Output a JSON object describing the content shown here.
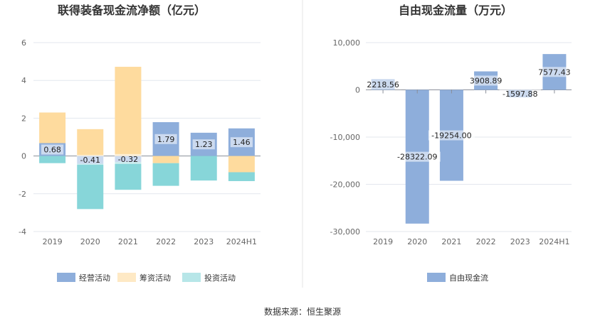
{
  "chart_data": [
    {
      "type": "bar",
      "stacked": true,
      "title": "联得装备现金流净额（亿元）",
      "categories": [
        "2019",
        "2020",
        "2021",
        "2022",
        "2023",
        "2024H1"
      ],
      "ylim": [
        -4,
        6
      ],
      "yticks": [
        "-4",
        "-2",
        "0",
        "2",
        "4",
        "6"
      ],
      "grid": true,
      "legend_position": "bottom",
      "series": [
        {
          "name": "经营活动",
          "color": "#8eaedb",
          "values": [
            0.68,
            -0.41,
            -0.32,
            1.79,
            1.23,
            1.46
          ],
          "labels": [
            "0.68",
            "-0.41",
            "-0.32",
            "1.79",
            "1.23",
            "1.46"
          ]
        },
        {
          "name": "筹资活动",
          "color": "#fedb9e",
          "values": [
            1.62,
            1.42,
            4.72,
            -0.38,
            0.0,
            -0.86
          ]
        },
        {
          "name": "投资活动",
          "color": "#87d6d9",
          "values": [
            -0.38,
            -2.4,
            -1.47,
            -1.2,
            -1.3,
            -0.47
          ]
        }
      ]
    },
    {
      "type": "bar",
      "title": "自由现金流量（万元）",
      "categories": [
        "2019",
        "2020",
        "2021",
        "2022",
        "2023",
        "2024H1"
      ],
      "ylim": [
        -30000,
        10000
      ],
      "yticks": [
        "-30,000",
        "-20,000",
        "-10,000",
        "0",
        "10,000"
      ],
      "grid": true,
      "legend_position": "bottom",
      "series": [
        {
          "name": "自由现金流",
          "color": "#8eaedb",
          "values": [
            2218.56,
            -28322.09,
            -19254.0,
            3908.89,
            -1597.88,
            7577.43
          ],
          "labels": [
            "2218.56",
            "-28322.09",
            "-19254.00",
            "3908.89",
            "-1597.88",
            "7577.43"
          ]
        }
      ]
    }
  ],
  "footer": {
    "source": "数据来源：恒生聚源"
  }
}
